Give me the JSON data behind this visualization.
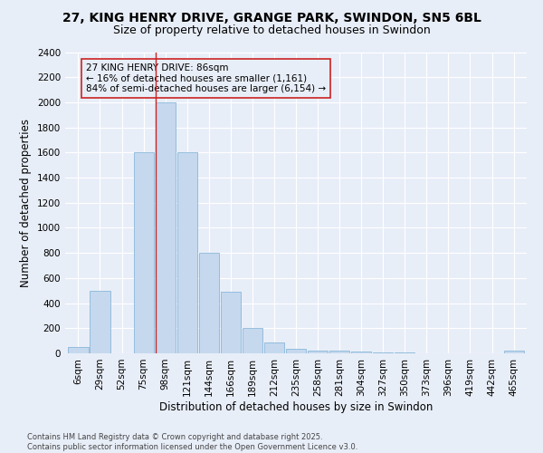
{
  "title": "27, KING HENRY DRIVE, GRANGE PARK, SWINDON, SN5 6BL",
  "subtitle": "Size of property relative to detached houses in Swindon",
  "xlabel": "Distribution of detached houses by size in Swindon",
  "ylabel": "Number of detached properties",
  "bar_categories": [
    "6sqm",
    "29sqm",
    "52sqm",
    "75sqm",
    "98sqm",
    "121sqm",
    "144sqm",
    "166sqm",
    "189sqm",
    "212sqm",
    "235sqm",
    "258sqm",
    "281sqm",
    "304sqm",
    "327sqm",
    "350sqm",
    "373sqm",
    "396sqm",
    "419sqm",
    "442sqm",
    "465sqm"
  ],
  "bar_values": [
    50,
    500,
    0,
    1600,
    2000,
    1600,
    800,
    490,
    200,
    85,
    35,
    25,
    20,
    12,
    8,
    5,
    3,
    2,
    0,
    0,
    20
  ],
  "bar_color": "#c5d8ee",
  "bar_edge_color": "#7aafd4",
  "ylim": [
    0,
    2400
  ],
  "yticks": [
    0,
    200,
    400,
    600,
    800,
    1000,
    1200,
    1400,
    1600,
    1800,
    2000,
    2200,
    2400
  ],
  "annotation_box_text": "27 KING HENRY DRIVE: 86sqm\n← 16% of detached houses are smaller (1,161)\n84% of semi-detached houses are larger (6,154) →",
  "vline_x_index": 3.55,
  "vline_color": "#cc2222",
  "footer_text": "Contains HM Land Registry data © Crown copyright and database right 2025.\nContains public sector information licensed under the Open Government Licence v3.0.",
  "bg_color": "#e8eef8",
  "grid_color": "#ffffff",
  "title_fontsize": 10,
  "subtitle_fontsize": 9,
  "axis_label_fontsize": 8.5,
  "tick_fontsize": 7.5,
  "annotation_fontsize": 7.5
}
